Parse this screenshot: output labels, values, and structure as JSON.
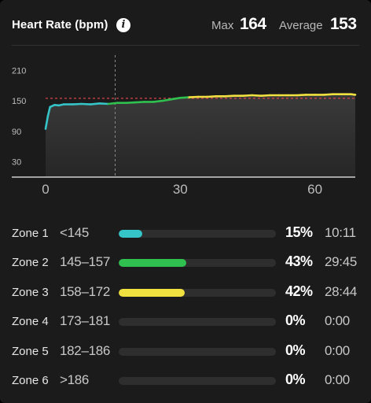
{
  "header": {
    "title": "Heart Rate (bpm)",
    "info_icon": "info-icon",
    "max_label": "Max",
    "max_value": "164",
    "avg_label": "Average",
    "avg_value": "153"
  },
  "chart_data": {
    "type": "line",
    "x_unit": "minutes",
    "y_ticks": [
      "210",
      "150",
      "90",
      "30"
    ],
    "x_ticks": [
      "0",
      "30",
      "60"
    ],
    "ylim": [
      0,
      240
    ],
    "xlim": [
      0,
      69
    ],
    "reference_line": {
      "value": 155,
      "color": "#d9434a",
      "style": "dashed"
    },
    "cursor_line_x": 15.5,
    "series": [
      {
        "x": [
          0,
          0.5,
          1,
          2,
          3,
          4,
          6,
          8,
          10,
          12,
          14,
          16,
          18,
          20,
          22,
          24,
          26,
          28,
          30,
          32,
          34,
          36,
          38,
          40,
          42,
          44,
          46,
          48,
          50,
          52,
          54,
          56,
          58,
          60,
          62,
          64,
          66,
          68,
          69
        ],
        "y": [
          95,
          120,
          138,
          142,
          141,
          143,
          143,
          144,
          143,
          145,
          144,
          146,
          146,
          147,
          148,
          148,
          150,
          153,
          156,
          157,
          158,
          158,
          159,
          159,
          160,
          160,
          161,
          160,
          161,
          161,
          161,
          161,
          162,
          162,
          162,
          163,
          163,
          163,
          162
        ]
      }
    ],
    "line_colors": {
      "zone1": "#35c4c7",
      "zone2": "#2fc050",
      "zone3": "#f0e040"
    }
  },
  "zones": [
    {
      "name": "Zone 1",
      "range": "<145",
      "percent": "15%",
      "fraction": 0.15,
      "time": "10:11",
      "color": "#35c4c7"
    },
    {
      "name": "Zone 2",
      "range": "145–157",
      "percent": "43%",
      "fraction": 0.43,
      "time": "29:45",
      "color": "#2fc050"
    },
    {
      "name": "Zone 3",
      "range": "158–172",
      "percent": "42%",
      "fraction": 0.42,
      "time": "28:44",
      "color": "#f0e040"
    },
    {
      "name": "Zone 4",
      "range": "173–181",
      "percent": "0%",
      "fraction": 0,
      "time": "0:00",
      "color": "#888888"
    },
    {
      "name": "Zone 5",
      "range": "182–186",
      "percent": "0%",
      "fraction": 0,
      "time": "0:00",
      "color": "#888888"
    },
    {
      "name": "Zone 6",
      "range": ">186",
      "percent": "0%",
      "fraction": 0,
      "time": "0:00",
      "color": "#888888"
    }
  ]
}
